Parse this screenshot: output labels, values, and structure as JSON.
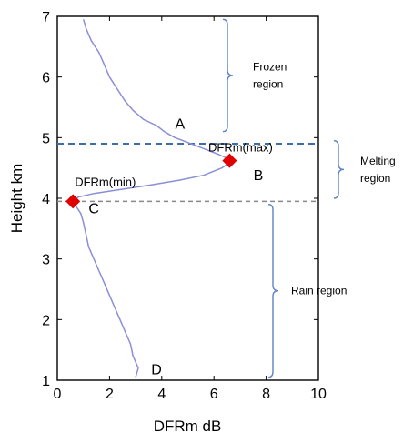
{
  "chart_data": {
    "type": "line",
    "xlabel": "DFRm dB",
    "ylabel": "Height km",
    "xlim": [
      0,
      10
    ],
    "ylim": [
      1,
      7
    ],
    "x_ticks": [
      "0",
      "2",
      "4",
      "6",
      "8",
      "10"
    ],
    "y_ticks": [
      "1",
      "2",
      "3",
      "4",
      "5",
      "6",
      "7"
    ],
    "series": [
      {
        "color": "#8a8fd6",
        "points": [
          [
            3.0,
            1.05
          ],
          [
            3.1,
            1.2
          ],
          [
            2.9,
            1.4
          ],
          [
            2.8,
            1.6
          ],
          [
            2.6,
            1.8
          ],
          [
            2.4,
            2.0
          ],
          [
            2.2,
            2.2
          ],
          [
            2.0,
            2.4
          ],
          [
            1.8,
            2.6
          ],
          [
            1.6,
            2.8
          ],
          [
            1.4,
            3.0
          ],
          [
            1.2,
            3.2
          ],
          [
            1.1,
            3.4
          ],
          [
            1.0,
            3.6
          ],
          [
            0.9,
            3.75
          ],
          [
            0.7,
            3.88
          ],
          [
            0.6,
            3.95
          ],
          [
            0.8,
            4.02
          ],
          [
            1.4,
            4.08
          ],
          [
            2.5,
            4.15
          ],
          [
            3.6,
            4.22
          ],
          [
            4.7,
            4.3
          ],
          [
            5.6,
            4.38
          ],
          [
            6.3,
            4.5
          ],
          [
            6.7,
            4.62
          ],
          [
            6.2,
            4.72
          ],
          [
            5.6,
            4.82
          ],
          [
            5.0,
            4.92
          ],
          [
            4.5,
            5.0
          ],
          [
            4.1,
            5.1
          ],
          [
            3.8,
            5.2
          ],
          [
            3.3,
            5.3
          ],
          [
            2.9,
            5.45
          ],
          [
            2.6,
            5.6
          ],
          [
            2.3,
            5.8
          ],
          [
            2.0,
            6.0
          ],
          [
            1.8,
            6.2
          ],
          [
            1.6,
            6.4
          ],
          [
            1.3,
            6.6
          ],
          [
            1.1,
            6.8
          ],
          [
            1.0,
            6.95
          ]
        ]
      }
    ],
    "reference_lines": [
      {
        "y": 4.9,
        "style": "dashed",
        "color": "#3c6eaa"
      },
      {
        "y": 3.95,
        "style": "dashed",
        "color": "#888888"
      }
    ],
    "markers": [
      {
        "label": "DFRm(max)",
        "x": 6.6,
        "y": 4.62,
        "color": "#e00000"
      },
      {
        "label": "DFRm(min)",
        "x": 0.6,
        "y": 3.95,
        "color": "#e00000"
      }
    ],
    "point_labels": [
      {
        "text": "A",
        "x": 4.7,
        "y": 5.15
      },
      {
        "text": "B",
        "x": 7.7,
        "y": 4.3
      },
      {
        "text": "C",
        "x": 1.4,
        "y": 3.75
      },
      {
        "text": "D",
        "x": 3.8,
        "y": 1.1
      }
    ],
    "regions": [
      {
        "lines": [
          "Frozen",
          "region"
        ],
        "y_range": [
          5.1,
          6.95
        ]
      },
      {
        "lines": [
          "Melting",
          "region"
        ],
        "y_range": [
          4.0,
          4.95
        ]
      },
      {
        "lines": [
          "Rain region"
        ],
        "y_range": [
          1.05,
          3.9
        ]
      }
    ]
  }
}
